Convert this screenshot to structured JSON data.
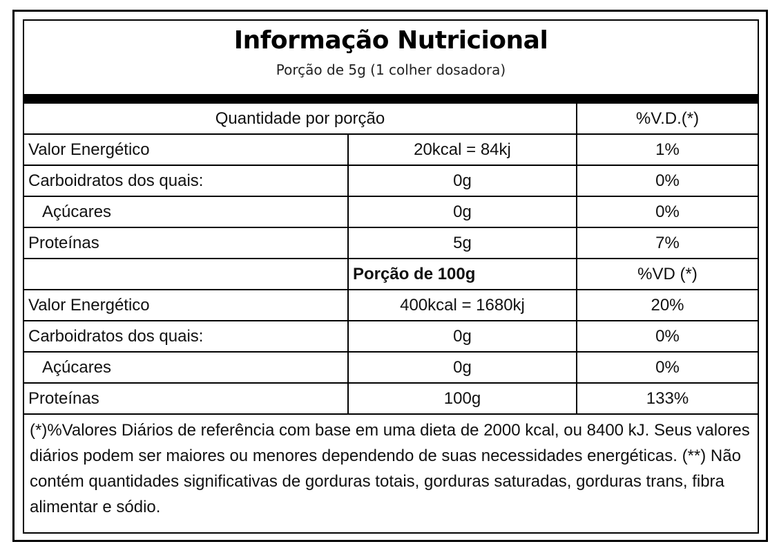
{
  "header": {
    "title": "Informação Nutricional",
    "subtitle": "Porção de 5g (1 colher dosadora)"
  },
  "sections": [
    {
      "heading": {
        "label": "Quantidade por porção",
        "vd": "%V.D.(*)"
      },
      "rows": [
        [
          "Valor Energético",
          "20kcal = 84kj",
          "1%"
        ],
        [
          "Carboidratos dos quais:",
          "0g",
          "0%"
        ],
        [
          "Açúcares",
          "0g",
          "0%"
        ],
        [
          "Proteínas",
          "5g",
          "7%"
        ]
      ]
    },
    {
      "heading": {
        "portion": "Porção de 100g",
        "vd": "%VD (*)"
      },
      "rows": [
        [
          "Valor Energético",
          "400kcal = 1680kj",
          "20%"
        ],
        [
          "Carboidratos dos quais:",
          "0g",
          "0%"
        ],
        [
          "Açúcares",
          "0g",
          "0%"
        ],
        [
          "Proteínas",
          "100g",
          "133%"
        ]
      ]
    }
  ],
  "footnote": "(*)%Valores Diários de referência com base em uma dieta de 2000 kcal, ou 8400 kJ. Seus valores diários podem ser maiores ou menores dependendo de suas necessidades energéticas. (**) Não contém quantidades significativas de gorduras totais, gorduras saturadas, gorduras trans, fibra alimentar e sódio."
}
